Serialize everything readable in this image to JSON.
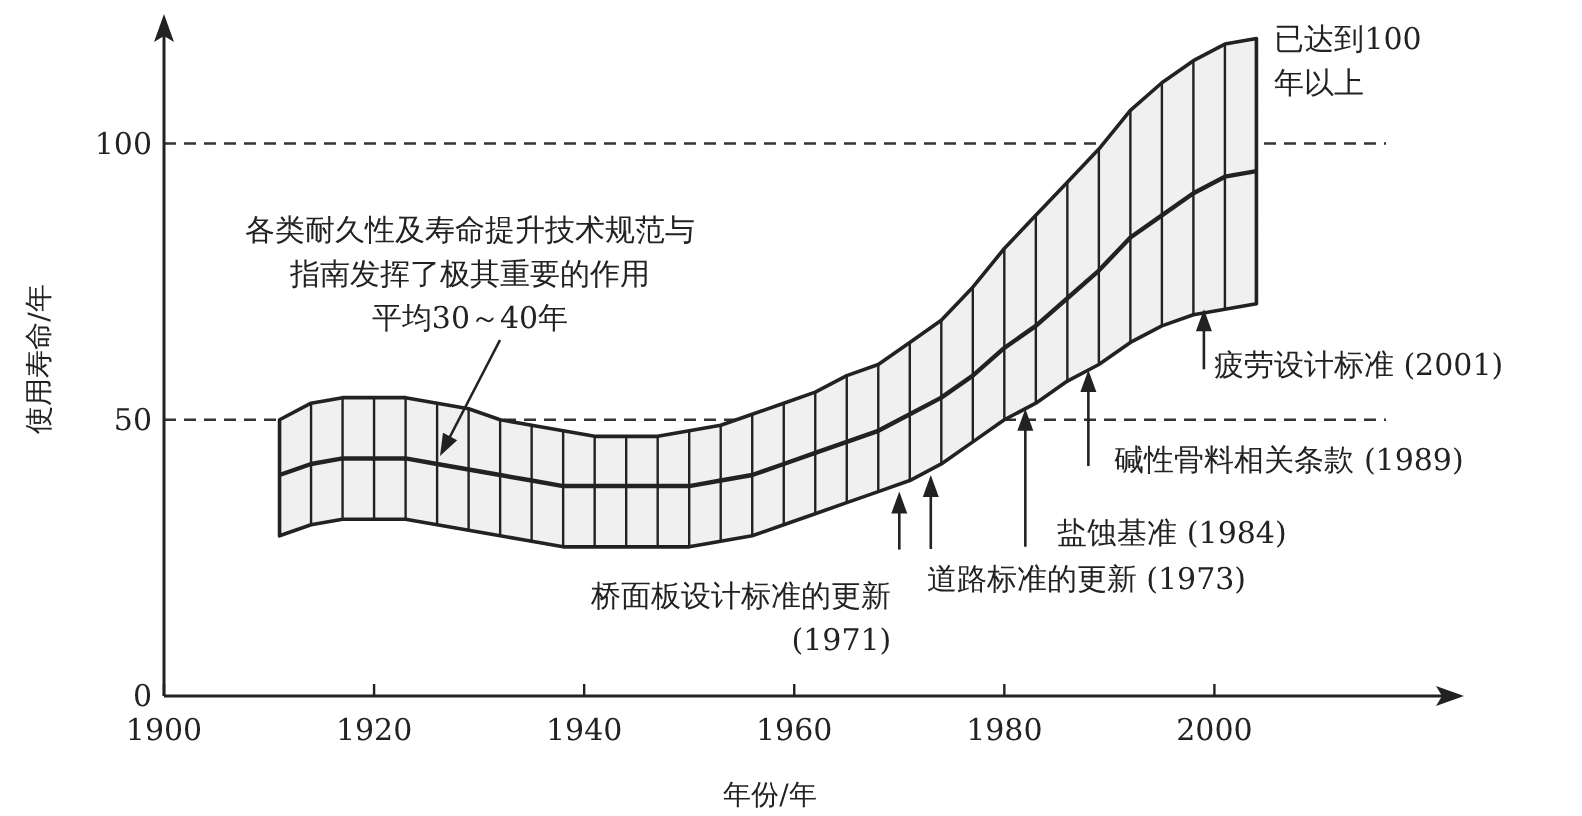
{
  "chart_data": {
    "type": "line",
    "xlabel": "年份/年",
    "ylabel": "使用寿命/年",
    "x": [
      1911,
      1914,
      1917,
      1920,
      1923,
      1926,
      1929,
      1932,
      1935,
      1938,
      1941,
      1944,
      1947,
      1950,
      1953,
      1956,
      1959,
      1962,
      1965,
      1968,
      1971,
      1974,
      1977,
      1980,
      1983,
      1986,
      1989,
      1992,
      1995,
      1998,
      2001,
      2004
    ],
    "series": [
      {
        "color": "#222222",
        "values": [
          40,
          42,
          43,
          43,
          43,
          42,
          41,
          40,
          39,
          38,
          38,
          38,
          38,
          38,
          39,
          40,
          42,
          44,
          46,
          48,
          51,
          54,
          58,
          63,
          67,
          72,
          77,
          83,
          87,
          91,
          94,
          95
        ],
        "lower": [
          29,
          31,
          32,
          32,
          32,
          31,
          30,
          29,
          28,
          27,
          27,
          27,
          27,
          27,
          28,
          29,
          31,
          33,
          35,
          37,
          39,
          42,
          46,
          50,
          53,
          57,
          60,
          64,
          67,
          69,
          70,
          71
        ],
        "upper": [
          50,
          53,
          54,
          54,
          54,
          53,
          52,
          50,
          49,
          48,
          47,
          47,
          47,
          48,
          49,
          51,
          53,
          55,
          58,
          60,
          64,
          68,
          74,
          81,
          87,
          93,
          99,
          106,
          111,
          115,
          118,
          119
        ]
      }
    ],
    "xlim": [
      1900,
      2023
    ],
    "ylim": [
      0,
      122
    ],
    "xticks": [
      1900,
      1920,
      1940,
      1960,
      1980,
      2000
    ],
    "yticks": [
      0,
      50,
      100
    ],
    "ref_lines": [
      {
        "axis": "y",
        "value": 50,
        "line_style": "dashed"
      },
      {
        "axis": "y",
        "value": 100,
        "line_style": "dashed"
      }
    ],
    "annotations": [
      "各类耐久性及寿命提升技术规范与指南发挥了极其重要的作用平均30～40年",
      {
        "text": "桥面板设计标准的更新\n(1971)",
        "x": 1970,
        "y": 37
      },
      {
        "text": "道路标准的更新 (1973)",
        "x": 1973,
        "y": 40
      },
      {
        "text": "盐蚀基准 (1984)",
        "x": 1982,
        "y": 52
      },
      {
        "text": "碱性骨料相关条款 (1989)",
        "x": 1988,
        "y": 59
      },
      {
        "text": "疲劳设计标准 (2001)",
        "x": 1999,
        "y": 70
      },
      {
        "text": "已达到100\n年以上",
        "x": 2004,
        "y": 119
      }
    ]
  }
}
